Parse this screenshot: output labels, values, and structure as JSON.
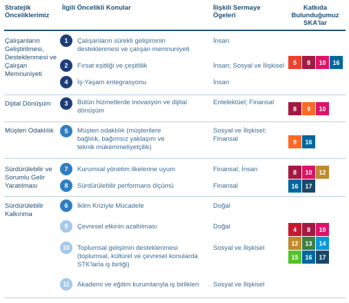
{
  "headers": {
    "col1": "Stratejik Önceliklerimiz",
    "col2": "İlgili Öncelikli Konular",
    "col3": "İlişkili Sermaye Ögeleri",
    "col4": "Katkıda Bulunduğumuz SKA'lar"
  },
  "groups": [
    "Çalışanların Geliştirilmesi, Desteklenmesi ve Çalışan Memnuniyeti",
    "Dijital Dönüşüm",
    "Müşteri Odaklılık",
    "Sürdürülebilir ve Sorumlu Gelir Yaratılması",
    "Sürdürülebilir Kalkınma"
  ],
  "topics": [
    {
      "num": "1",
      "text": "Çalışanların sürekli gelişiminin desteklenmesi ve çalışan memnuniyeti",
      "capital": "İnsan"
    },
    {
      "num": "2",
      "text": "Fırsat eşitliği ve çeşitlilik",
      "capital": "İnsan; Sosyal ve İlişkisel"
    },
    {
      "num": "4",
      "text": "İş-Yaşam entegrasyonu",
      "capital": "İnsan"
    },
    {
      "num": "3",
      "text": "Bütün hizmetlerde inovasyon ve dijital dönüşüm",
      "capital": "Entelektüel; Finansal"
    },
    {
      "num": "5",
      "text": "Müşteri odaklılık (müşterilere bağlılık, bağımsız yaklaşım ve teknik mükemmeliyetçilik)",
      "capital": "Sosyal ve İlişkisel; Finansal"
    },
    {
      "num": "7",
      "text": "Kurumsal yönetim ilkelerine uyum",
      "capital": "Finansal; İnsan"
    },
    {
      "num": "8",
      "text": "Sürdürülebilir performans ölçümü",
      "capital": "Finansal"
    },
    {
      "num": "6",
      "text": "İklim Kriziyle Mücadele",
      "capital": "Doğal"
    },
    {
      "num": "9",
      "text": "Çevresel etkinin azaltılması",
      "capital": "Doğal"
    },
    {
      "num": "10",
      "text": "Toplumsal gelişimin desteklenmesi (toplumsal, kültürel ve çevresel konularda STK'larla iş birliği)",
      "capital": "Sosyal ve İlişkisel"
    },
    {
      "num": "11",
      "text": "Akademi ve eğitim kurumlarıyla iş birlikleri",
      "capital": "Sosyal ve İlişkisel"
    }
  ],
  "sdgs": [
    {
      "label": "5",
      "color": "#ef402b"
    },
    {
      "label": "8",
      "color": "#a21942"
    },
    {
      "label": "10",
      "color": "#dd1367"
    },
    {
      "label": "16",
      "color": "#00689d"
    },
    {
      "label": "8",
      "color": "#a21942"
    },
    {
      "label": "9",
      "color": "#fd6925"
    },
    {
      "label": "10",
      "color": "#dd1367"
    },
    {
      "label": "9",
      "color": "#fd6925"
    },
    {
      "label": "16",
      "color": "#00689d"
    },
    {
      "label": "8",
      "color": "#a21942"
    },
    {
      "label": "10",
      "color": "#dd1367"
    },
    {
      "label": "12",
      "color": "#bf8b2e"
    },
    {
      "label": "16",
      "color": "#00689d"
    },
    {
      "label": "17",
      "color": "#19486a"
    },
    {
      "label": "4",
      "color": "#c5192d"
    },
    {
      "label": "8",
      "color": "#a21942"
    },
    {
      "label": "10",
      "color": "#dd1367"
    },
    {
      "label": "12",
      "color": "#bf8b2e"
    },
    {
      "label": "13",
      "color": "#3f7e44"
    },
    {
      "label": "14",
      "color": "#0a97d9"
    },
    {
      "label": "15",
      "color": "#56c02b"
    },
    {
      "label": "16",
      "color": "#00689d"
    },
    {
      "label": "17",
      "color": "#19486a"
    }
  ]
}
